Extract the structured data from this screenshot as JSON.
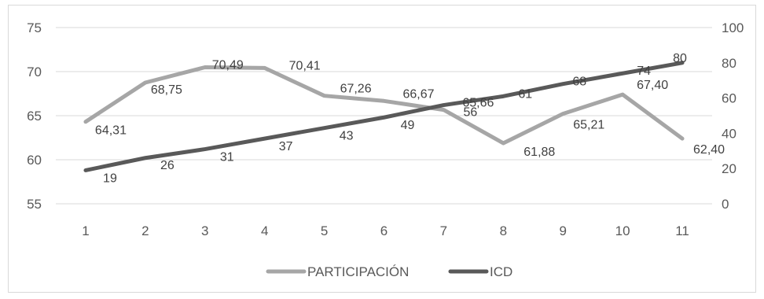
{
  "chart_data": {
    "type": "line",
    "title": "",
    "xlabel": "",
    "ylabel": "",
    "y2label": "",
    "x": [
      1,
      2,
      3,
      4,
      5,
      6,
      7,
      8,
      9,
      10,
      11
    ],
    "x_tick_labels": [
      "1",
      "2",
      "3",
      "4",
      "5",
      "6",
      "7",
      "8",
      "9",
      "10",
      "11"
    ],
    "ylim": [
      55,
      75
    ],
    "y_ticks": [
      55,
      60,
      65,
      70,
      75
    ],
    "y2lim": [
      0,
      100
    ],
    "y2_ticks": [
      0,
      20,
      40,
      60,
      80,
      100
    ],
    "grid": true,
    "legend_position": "bottom",
    "series": [
      {
        "name": "PARTICIPACIÓN",
        "axis": "left",
        "color": "#a6a6a6",
        "values": [
          64.31,
          68.75,
          70.49,
          70.41,
          67.26,
          66.67,
          65.66,
          61.88,
          65.21,
          67.4,
          62.4
        ],
        "labels": [
          "64,31",
          "68,75",
          "70,49",
          "70,41",
          "67,26",
          "66,67",
          "65,66",
          "61,88",
          "65,21",
          "67,40",
          "62,40"
        ]
      },
      {
        "name": "ICD",
        "axis": "right",
        "color": "#595959",
        "values": [
          19,
          26,
          31,
          37,
          43,
          49,
          56,
          61,
          68,
          74,
          80
        ],
        "labels": [
          "19",
          "26",
          "31",
          "37",
          "43",
          "49",
          "56",
          "61",
          "68",
          "74",
          "80"
        ]
      }
    ]
  }
}
